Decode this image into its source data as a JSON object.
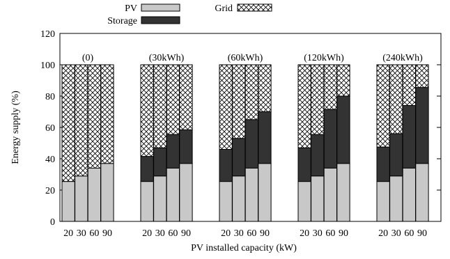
{
  "chart_data": {
    "type": "bar",
    "subtype": "grouped-stacked",
    "xlabel": "PV installed capacity (kW)",
    "ylabel": "Energy supply (%)",
    "ylim": [
      0,
      120
    ],
    "yticks": [
      0,
      20,
      40,
      60,
      80,
      100,
      120
    ],
    "grid": false,
    "legend_position": "top",
    "legend": [
      {
        "name": "PV",
        "color": "#c8c8c8",
        "pattern": "solid"
      },
      {
        "name": "Storage",
        "color": "#333333",
        "pattern": "solid"
      },
      {
        "name": "Grid",
        "color": "#ffffff",
        "pattern": "crosshatch"
      }
    ],
    "categories": [
      "20",
      "30",
      "60",
      "90"
    ],
    "groups": [
      {
        "label": "(0)",
        "pv": [
          25.5,
          29,
          34,
          37
        ],
        "storage": [
          0,
          0,
          0,
          0
        ],
        "grid": [
          74.5,
          71,
          66,
          63
        ]
      },
      {
        "label": "(30kWh)",
        "pv": [
          25.5,
          29,
          34,
          37
        ],
        "storage": [
          16,
          18,
          21.5,
          21.5
        ],
        "grid": [
          58.5,
          53,
          44.5,
          41.5
        ]
      },
      {
        "label": "(60kWh)",
        "pv": [
          25.5,
          29,
          34,
          37
        ],
        "storage": [
          20.5,
          24,
          31,
          33
        ],
        "grid": [
          54,
          47,
          35,
          30
        ]
      },
      {
        "label": "(120kWh)",
        "pv": [
          25.5,
          29,
          34,
          37
        ],
        "storage": [
          21.5,
          26.5,
          37.5,
          43
        ],
        "grid": [
          53,
          44.5,
          28.5,
          20
        ]
      },
      {
        "label": "(240kWh)",
        "pv": [
          25.5,
          29,
          34,
          37
        ],
        "storage": [
          22,
          27,
          40,
          48.5
        ],
        "grid": [
          52.5,
          44,
          26,
          14.5
        ]
      }
    ]
  }
}
